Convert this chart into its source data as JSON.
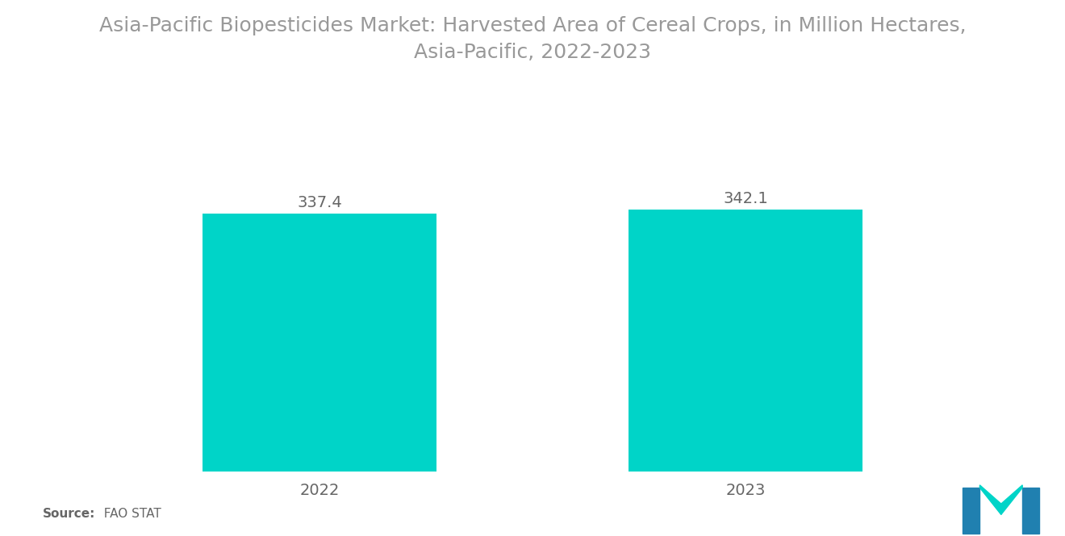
{
  "title": "Asia-Pacific Biopesticides Market: Harvested Area of Cereal Crops, in Million Hectares,\nAsia-Pacific, 2022-2023",
  "categories": [
    "2022",
    "2023"
  ],
  "values": [
    337.4,
    342.1
  ],
  "bar_color": "#00D4C8",
  "background_color": "#ffffff",
  "title_color": "#999999",
  "label_color": "#666666",
  "value_fontsize": 14,
  "xtick_fontsize": 14,
  "title_fontsize": 18,
  "source_label": "Source:",
  "source_value": "  FAO STAT",
  "source_fontsize": 11,
  "ylim": [
    0,
    420
  ],
  "bar_width": 0.55,
  "xlim": [
    -0.55,
    1.55
  ]
}
